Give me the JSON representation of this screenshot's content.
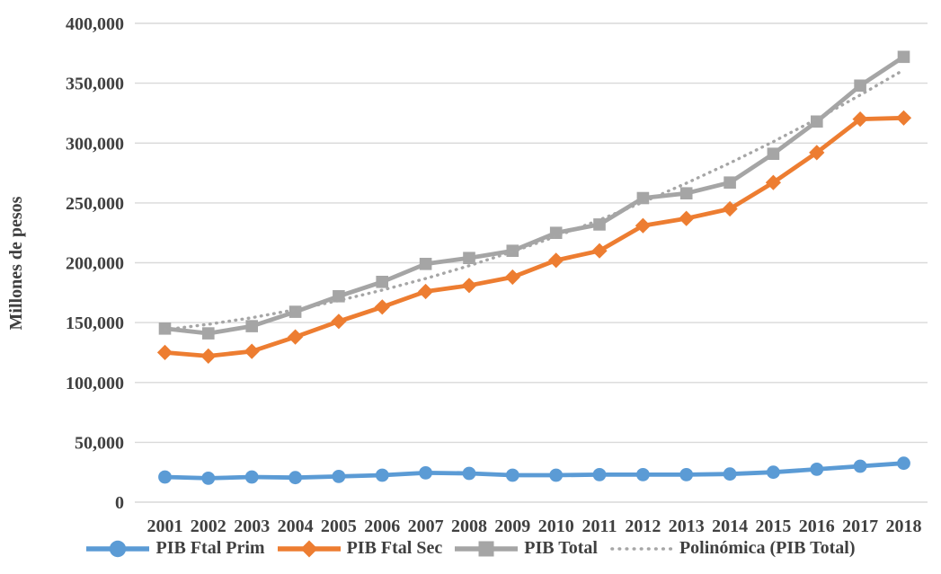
{
  "colors": {
    "axis_text": "#404040",
    "gridline": "#D9D9D9",
    "plot_background": "#FFFFFF",
    "series_blue": "#5B9BD5",
    "series_orange": "#ED7D31",
    "series_gray": "#A5A5A5",
    "trendline_gray": "#A6A6A6"
  },
  "chart_data": {
    "type": "line",
    "title": "",
    "xlabel": "",
    "ylabel": "Millones de pesos",
    "ylim": [
      0,
      400000
    ],
    "ytick_step": 50000,
    "y_tick_labels": [
      "0",
      "50,000",
      "100,000",
      "150,000",
      "200,000",
      "250,000",
      "300,000",
      "350,000",
      "400,000"
    ],
    "grid": true,
    "legend_position": "bottom",
    "categories": [
      "2001",
      "2002",
      "2003",
      "2004",
      "2005",
      "2006",
      "2007",
      "2008",
      "2009",
      "2010",
      "2011",
      "2012",
      "2013",
      "2014",
      "2015",
      "2016",
      "2017",
      "2018"
    ],
    "series": [
      {
        "name": "PIB Ftal Prim",
        "color": "#5B9BD5",
        "marker": "circle",
        "style": "solid",
        "values": [
          21000,
          20000,
          21000,
          20500,
          21500,
          22500,
          24500,
          24000,
          22500,
          22500,
          23000,
          23000,
          23000,
          23500,
          25000,
          27500,
          30000,
          32500
        ]
      },
      {
        "name": "PIB Ftal Sec",
        "color": "#ED7D31",
        "marker": "diamond",
        "style": "solid",
        "values": [
          125000,
          122000,
          126000,
          138000,
          151000,
          163000,
          176000,
          181000,
          188000,
          202000,
          210000,
          231000,
          237000,
          245000,
          267000,
          292000,
          320000,
          321000
        ]
      },
      {
        "name": "PIB Total",
        "color": "#A5A5A5",
        "marker": "square",
        "style": "solid",
        "values": [
          145000,
          141000,
          147000,
          159000,
          172000,
          184000,
          199000,
          204000,
          210000,
          225000,
          232000,
          254000,
          258000,
          267000,
          291000,
          318000,
          348000,
          372000
        ]
      },
      {
        "name": "Polinómica (PIB Total)",
        "color": "#A6A6A6",
        "marker": "none",
        "style": "dotted",
        "values": [
          144000,
          148600,
          154100,
          160800,
          168400,
          177100,
          186800,
          197500,
          209200,
          222000,
          235800,
          250600,
          266500,
          283300,
          301200,
          320100,
          340100,
          361100
        ]
      }
    ]
  }
}
